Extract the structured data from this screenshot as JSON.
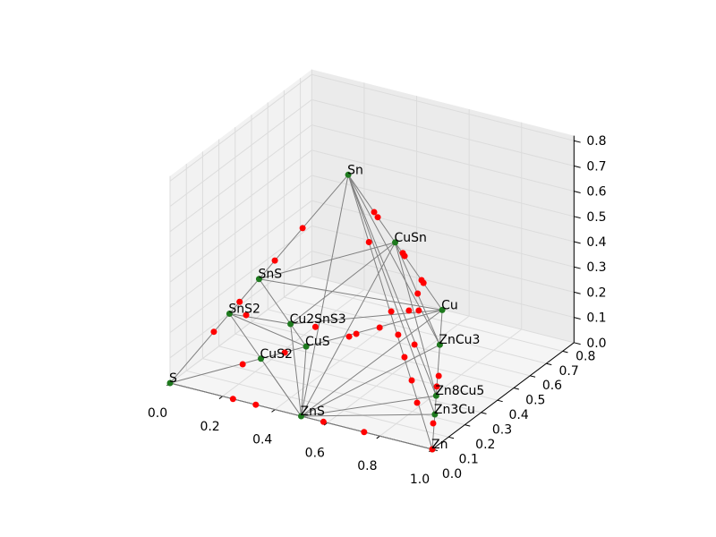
{
  "chart_data": {
    "type": "scatter3d",
    "xlim": [
      0,
      1
    ],
    "ylim": [
      0,
      0.87
    ],
    "zlim": [
      0,
      0.82
    ],
    "xticks": [
      {
        "value": 0,
        "label": "0.0"
      },
      0.2,
      0.4,
      0.6,
      0.8,
      {
        "value": 1,
        "label": "1.0"
      }
    ],
    "yticks": [
      {
        "value": 0,
        "label": "0.0"
      },
      0.1,
      0.2,
      0.3,
      0.4,
      0.5,
      0.6,
      0.7,
      0.8
    ],
    "zticks": [
      {
        "value": 0,
        "label": "0.0"
      },
      0.1,
      0.2,
      0.3,
      0.4,
      0.5,
      0.6,
      0.7,
      0.8
    ],
    "grid": true,
    "line_color": "#808080",
    "stable": {
      "color": "#1e7a1e",
      "labels": [
        "S",
        "Zn",
        "Cu",
        "Sn",
        "SnS",
        "SnS2",
        "CuS",
        "CuS2",
        "ZnS",
        "Cu2SnS3",
        "CuSn",
        "ZnCu3",
        "Zn8Cu5",
        "Zn3Cu"
      ],
      "x": [
        0,
        1,
        0.5,
        0.5,
        0.25,
        0.167,
        0.25,
        0.167,
        0.5,
        0.25,
        0.5,
        0.625,
        0.808,
        0.875
      ],
      "y": [
        0,
        0,
        0.866,
        0.289,
        0.144,
        0.096,
        0.433,
        0.289,
        0,
        0.337,
        0.577,
        0.65,
        0.333,
        0.217
      ],
      "z": [
        0,
        0,
        0,
        0.816,
        0.408,
        0.272,
        0,
        0,
        0,
        0.136,
        0.408,
        0,
        0,
        0
      ]
    },
    "unstable": {
      "color": "#ff0000",
      "x": [
        0.372,
        0.294,
        0.195,
        0.123,
        0.151,
        0.136,
        0.212,
        0.24,
        0.327,
        0.585,
        0.74,
        0.25,
        0.335,
        0.345,
        0.388,
        0.408,
        0.455,
        0.483,
        0.468,
        0.552,
        0.571,
        0.68,
        0.74,
        0.775,
        0.78,
        0.904,
        1,
        0.5,
        0.5,
        0.623,
        0.5,
        0.5,
        0.5,
        0.5,
        0.563
      ],
      "y": [
        0.215,
        0.17,
        0.113,
        0.071,
        0.224,
        0.227,
        0.363,
        0,
        0,
        0,
        0,
        0.49,
        0.56,
        0.588,
        0.662,
        0.701,
        0.734,
        0.749,
        0.647,
        0.612,
        0.52,
        0.389,
        0.458,
        0.39,
        0.261,
        0.16,
        0,
        0.448,
        0.47,
        0.218,
        0.624,
        0.635,
        0.739,
        0.751,
        0.614
      ],
      "z": [
        0.607,
        0.48,
        0.318,
        0.201,
        0.2,
        0,
        0,
        0,
        0,
        0,
        0,
        0.05,
        0,
        0,
        0,
        0.05,
        0.05,
        0.05,
        0,
        0,
        0,
        0,
        0,
        0,
        0,
        0,
        0,
        0.591,
        0.56,
        0.616,
        0.343,
        0.326,
        0.18,
        0.163,
        0.204
      ]
    }
  }
}
